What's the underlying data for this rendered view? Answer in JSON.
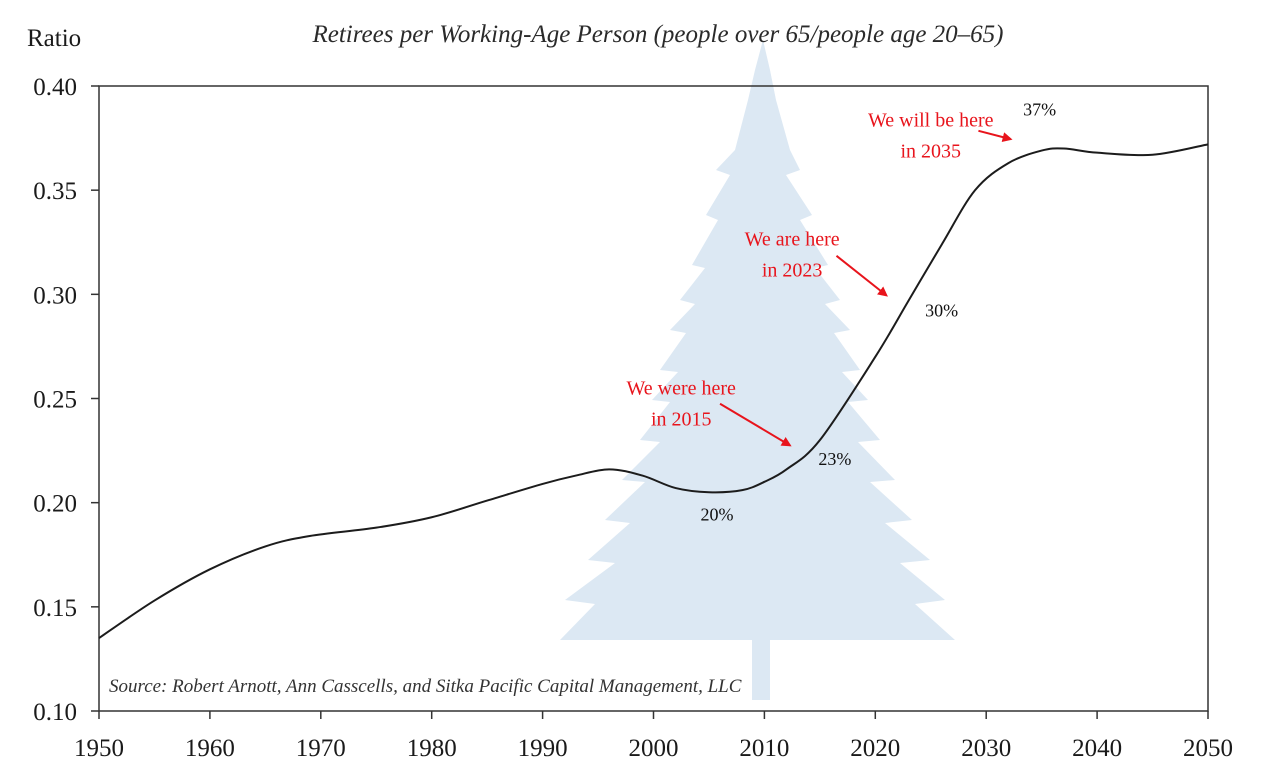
{
  "chart_data": {
    "type": "line",
    "title": "Retirees per Working-Age Person (people over 65/people age 20–65)",
    "ylabel": "Ratio",
    "xlabel": "",
    "xlim": [
      1950,
      2050
    ],
    "ylim": [
      0.1,
      0.4
    ],
    "grid": false,
    "legend": "none",
    "x_ticks": [
      "1950",
      "1960",
      "1970",
      "1980",
      "1990",
      "2000",
      "2010",
      "2020",
      "2030",
      "2040",
      "2050"
    ],
    "y_ticks": [
      "0.40",
      "0.35",
      "0.30",
      "0.25",
      "0.20",
      "0.15",
      "0.10"
    ],
    "x_tick_values": [
      1950,
      1960,
      1970,
      1980,
      1990,
      2000,
      2010,
      2020,
      2030,
      2040,
      2050
    ],
    "y_tick_values": [
      0.4,
      0.35,
      0.3,
      0.25,
      0.2,
      0.15,
      0.1
    ],
    "series": [
      {
        "x": [
          1950,
          1955,
          1960,
          1965,
          1969,
          1975,
          1980,
          1985,
          1990,
          1993,
          1996,
          1999,
          2002,
          2005,
          2008,
          2010,
          2012,
          2015,
          2020,
          2023,
          2026,
          2029,
          2032,
          2035,
          2037,
          2040,
          2045,
          2050
        ],
        "values": [
          0.135,
          0.153,
          0.168,
          0.179,
          0.184,
          0.188,
          0.193,
          0.201,
          0.209,
          0.213,
          0.216,
          0.213,
          0.207,
          0.205,
          0.206,
          0.21,
          0.216,
          0.23,
          0.27,
          0.297,
          0.324,
          0.35,
          0.363,
          0.369,
          0.37,
          0.368,
          0.367,
          0.372
        ],
        "color": "#1c1c1c"
      }
    ],
    "point_labels": [
      {
        "x": 2005,
        "y": 0.205,
        "text": "20%"
      },
      {
        "x": 2015,
        "y": 0.23,
        "text": "23%"
      },
      {
        "x": 2023,
        "y": 0.297,
        "text": "30%"
      },
      {
        "x": 2035,
        "y": 0.37,
        "text": "37%"
      }
    ],
    "annotations": [
      {
        "lines": [
          "We were here",
          "in 2015"
        ],
        "x": 2002.5,
        "y": 0.252,
        "arrow_from": [
          2006,
          0.2475
        ],
        "arrow_to": [
          2012.3,
          0.2275
        ],
        "color": "#e8141c"
      },
      {
        "lines": [
          "We are here",
          "in 2023"
        ],
        "x": 2012.5,
        "y": 0.3235,
        "arrow_from": [
          2016.5,
          0.3185
        ],
        "arrow_to": [
          2021,
          0.2995
        ],
        "color": "#e8141c"
      },
      {
        "lines": [
          "We will be here",
          "in 2035"
        ],
        "x": 2025,
        "y": 0.3805,
        "arrow_from": [
          2029.3,
          0.3785
        ],
        "arrow_to": [
          2032.2,
          0.3745
        ],
        "color": "#e8141c"
      }
    ],
    "source": "Source: Robert Arnott, Ann Casscells, and Sitka Pacific Capital Management, LLC",
    "watermark": "tree-watermark",
    "watermark_color": "#dce8f3"
  }
}
